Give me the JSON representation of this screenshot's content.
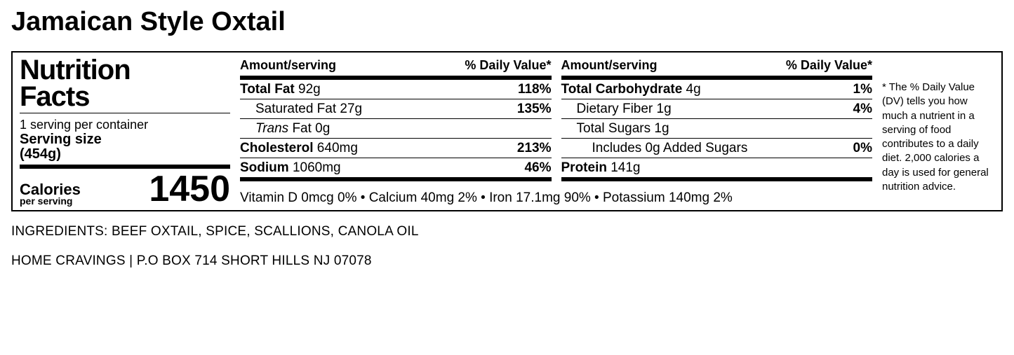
{
  "product_title": "Jamaican Style Oxtail",
  "nf": {
    "panel_title_l1": "Nutrition",
    "panel_title_l2": "Facts",
    "servings_per_container": "1 serving per container",
    "serving_size_label": "Serving size",
    "serving_size_value": "(454g)",
    "calories_label": "Calories",
    "calories_sub": "per serving",
    "calories_value": "1450",
    "header_amount": "Amount/serving",
    "header_dv": "% Daily Value*",
    "col1": [
      {
        "name_bold": "Total Fat",
        "name_rest": " 92g",
        "dv": "118%",
        "indent": 0
      },
      {
        "name_bold": "",
        "name_rest": "Saturated Fat 27g",
        "dv": "135%",
        "indent": 1
      },
      {
        "name_trans": "Trans",
        "name_rest": " Fat 0g",
        "dv": "",
        "indent": 1
      },
      {
        "name_bold": "Cholesterol",
        "name_rest": " 640mg",
        "dv": "213%",
        "indent": 0
      },
      {
        "name_bold": "Sodium",
        "name_rest": " 1060mg",
        "dv": "46%",
        "indent": 0
      }
    ],
    "col2": [
      {
        "name_bold": "Total Carbohydrate",
        "name_rest": " 4g",
        "dv": "1%",
        "indent": 0
      },
      {
        "name_bold": "",
        "name_rest": "Dietary Fiber 1g",
        "dv": "4%",
        "indent": 1
      },
      {
        "name_bold": "",
        "name_rest": "Total Sugars 1g",
        "dv": "",
        "indent": 1
      },
      {
        "name_bold": "",
        "name_rest": "Includes 0g Added Sugars",
        "dv": "0%",
        "indent": 2
      },
      {
        "name_bold": "Protein",
        "name_rest": " 141g",
        "dv": "",
        "indent": 0
      }
    ],
    "vitamins": "Vitamin D 0mcg 0% • Calcium 40mg 2% • Iron 17.1mg 90% • Potassium 140mg 2%",
    "dv_note": "* The % Daily Value (DV) tells you how much a nutrient in a serving of food contributes to a daily diet. 2,000 calories a day is used for general nutrition advice."
  },
  "ingredients": "INGREDIENTS: BEEF OXTAIL, SPICE, SCALLIONS, CANOLA OIL",
  "footer": "HOME CRAVINGS | P.O BOX 714 SHORT HILLS NJ 07078"
}
